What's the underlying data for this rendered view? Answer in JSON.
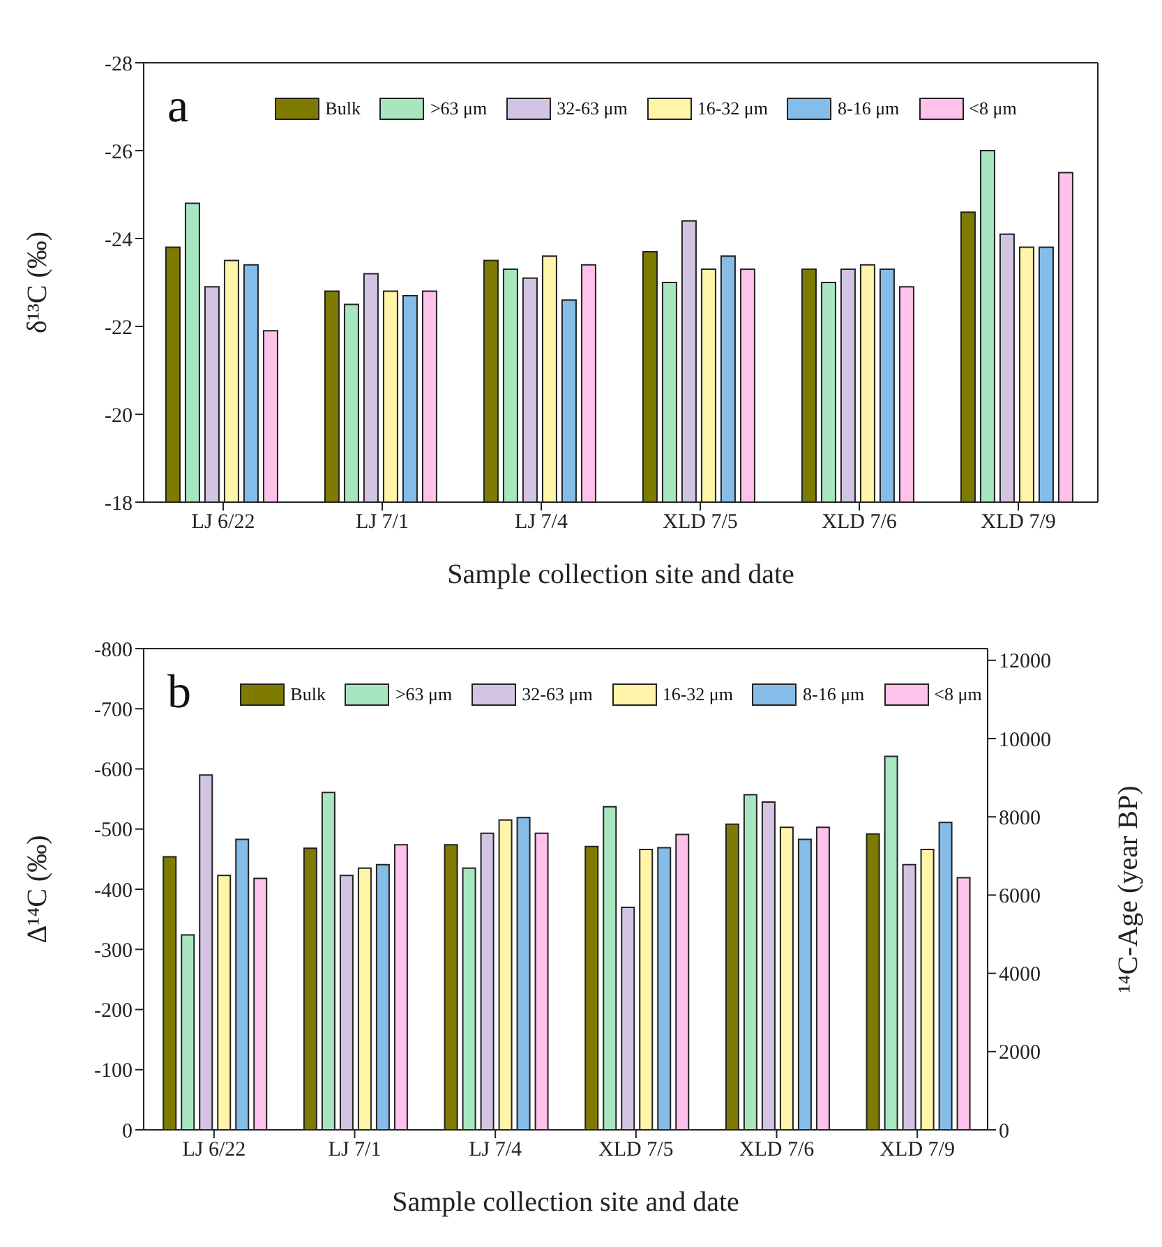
{
  "chart_data": [
    {
      "type": "bar",
      "annotations": [
        "a"
      ],
      "xlabel": "Sample collection site and date",
      "ylabel": "δ¹³C (‰)",
      "categories": [
        "LJ 6/22",
        "LJ 7/1",
        "LJ 7/4",
        "XLD 7/5",
        "XLD 7/6",
        "XLD 7/9"
      ],
      "series": [
        {
          "name": "Bulk",
          "color": "#7f7a00",
          "values": [
            -23.8,
            -22.8,
            -23.5,
            -23.7,
            -23.3,
            -24.6
          ]
        },
        {
          "name": ">63 μm",
          "color": "#a8e6c0",
          "values": [
            -24.8,
            -22.5,
            -23.3,
            -23.0,
            -23.0,
            -26.0
          ]
        },
        {
          "name": "32-63 μm",
          "color": "#d2c4e2",
          "values": [
            -22.9,
            -23.2,
            -23.1,
            -24.4,
            -23.3,
            -24.1
          ]
        },
        {
          "name": "16-32 μm",
          "color": "#fff4a8",
          "values": [
            -23.5,
            -22.8,
            -23.6,
            -23.3,
            -23.4,
            -23.8
          ]
        },
        {
          "name": "8-16 μm",
          "color": "#86bde8",
          "values": [
            -23.4,
            -22.7,
            -22.6,
            -23.6,
            -23.3,
            -23.8
          ]
        },
        {
          "name": "<8 μm",
          "color": "#ffc2ea",
          "values": [
            -21.9,
            -22.8,
            -23.4,
            -23.3,
            -22.9,
            -25.5
          ]
        }
      ],
      "ylim": [
        -18,
        -28
      ],
      "yticks": [
        -18,
        -20,
        -22,
        -24,
        -26,
        -28
      ],
      "grid": false,
      "legend": "top"
    },
    {
      "type": "bar",
      "annotations": [
        "b"
      ],
      "xlabel": "Sample collection site and date",
      "ylabel": "Δ¹⁴C (‰)",
      "y2label": "¹⁴C-Age (year BP)",
      "categories": [
        "LJ 6/22",
        "LJ 7/1",
        "LJ 7/4",
        "XLD 7/5",
        "XLD 7/6",
        "XLD 7/9"
      ],
      "series": [
        {
          "name": "Bulk",
          "color": "#7f7a00",
          "values": [
            -454,
            -468,
            -474,
            -471,
            -508,
            -492
          ]
        },
        {
          "name": ">63 μm",
          "color": "#a8e6c0",
          "values": [
            -324,
            -561,
            -435,
            -537,
            -557,
            -621
          ]
        },
        {
          "name": "32-63 μm",
          "color": "#d2c4e2",
          "values": [
            -590,
            -423,
            -493,
            -370,
            -545,
            -441
          ]
        },
        {
          "name": "16-32 μm",
          "color": "#fff4a8",
          "values": [
            -423,
            -435,
            -515,
            -466,
            -503,
            -466
          ]
        },
        {
          "name": "8-16 μm",
          "color": "#86bde8",
          "values": [
            -483,
            -441,
            -519,
            -469,
            -483,
            -511
          ]
        },
        {
          "name": "<8 μm",
          "color": "#ffc2ea",
          "values": [
            -418,
            -474,
            -493,
            -491,
            -503,
            -419
          ]
        }
      ],
      "ylim": [
        0,
        -800
      ],
      "yticks": [
        0,
        -100,
        -200,
        -300,
        -400,
        -500,
        -600,
        -700,
        -800
      ],
      "y2lim": [
        0,
        12300
      ],
      "y2ticks": [
        0,
        2000,
        4000,
        6000,
        8000,
        10000,
        12000
      ],
      "grid": false,
      "legend": "top"
    }
  ]
}
